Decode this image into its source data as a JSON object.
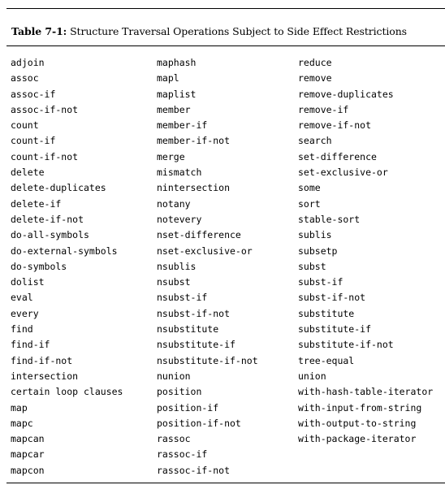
{
  "table": {
    "number": "Table 7-1:",
    "title": "Structure Traversal Operations Subject to Side Effect Restrictions",
    "columns": [
      [
        "adjoin",
        "assoc",
        "assoc-if",
        "assoc-if-not",
        "count",
        "count-if",
        "count-if-not",
        "delete",
        "delete-duplicates",
        "delete-if",
        "delete-if-not",
        "do-all-symbols",
        "do-external-symbols",
        "do-symbols",
        "dolist",
        "eval",
        "every",
        "find",
        "find-if",
        "find-if-not",
        "intersection",
        "certain loop clauses",
        "map",
        "mapc",
        "mapcan",
        "mapcar",
        "mapcon"
      ],
      [
        "maphash",
        "mapl",
        "maplist",
        "member",
        "member-if",
        "member-if-not",
        "merge",
        "mismatch",
        "nintersection",
        "notany",
        "notevery",
        "nset-difference",
        "nset-exclusive-or",
        "nsublis",
        "nsubst",
        "nsubst-if",
        "nsubst-if-not",
        "nsubstitute",
        "nsubstitute-if",
        "nsubstitute-if-not",
        "nunion",
        "position",
        "position-if",
        "position-if-not",
        "rassoc",
        "rassoc-if",
        "rassoc-if-not"
      ],
      [
        "reduce",
        "remove",
        "remove-duplicates",
        "remove-if",
        "remove-if-not",
        "search",
        "set-difference",
        "set-exclusive-or",
        "some",
        "sort",
        "stable-sort",
        "sublis",
        "subsetp",
        "subst",
        "subst-if",
        "subst-if-not",
        "substitute",
        "substitute-if",
        "substitute-if-not",
        "tree-equal",
        "union",
        "with-hash-table-iterator",
        "with-input-from-string",
        "with-output-to-string",
        "with-package-iterator"
      ]
    ]
  }
}
